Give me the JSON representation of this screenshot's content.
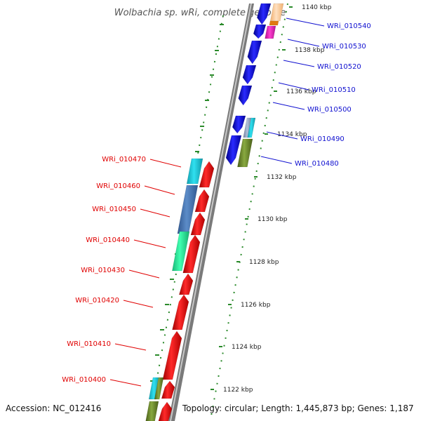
{
  "title": "Wolbachia sp. wRi, complete genome",
  "footer": {
    "accession": "Accession: NC_012416",
    "topology": "Topology: circular; Length: 1,445,873 bp; Genes: 1,187"
  },
  "ticks": [
    "1140 kbp",
    "1138 kbp",
    "1136 kbp",
    "1134 kbp",
    "1132 kbp",
    "1130 kbp",
    "1128 kbp",
    "1126 kbp",
    "1124 kbp",
    "1122 kbp"
  ],
  "labels_left": [
    "WRi_010470",
    "WRi_010460",
    "WRi_010450",
    "WRi_010440",
    "WRi_010430",
    "WRi_010420",
    "WRi_010410",
    "WRi_010400"
  ],
  "labels_right": [
    "WRi_010540",
    "WRi_010530",
    "WRi_010520",
    "WRi_010510",
    "WRi_010500",
    "WRi_010490",
    "WRi_010480"
  ],
  "colors": {
    "forward_gene": "#e80000",
    "reverse_gene": "#0a0aee",
    "cyan": "#22c8d8",
    "steel": "#4c78b4",
    "mint": "#2ee8a0",
    "olive": "#6e8a2c",
    "magenta": "#e020b0",
    "peach": "#ffc890",
    "tick": "#228822",
    "left_line": "#e00000",
    "right_line": "#1010d0"
  }
}
